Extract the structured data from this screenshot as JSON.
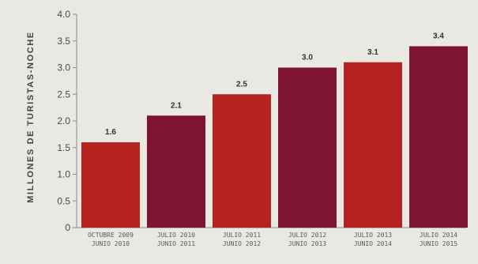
{
  "chart_data": {
    "type": "bar",
    "title": "",
    "xlabel": "",
    "ylabel": "MILLONES DE TURISTAS-NOCHE",
    "ylim": [
      0,
      4
    ],
    "yticks": [
      "0",
      "0.5",
      "1.0",
      "1.5",
      "2.0",
      "2.5",
      "3.0",
      "3.5",
      "4.0"
    ],
    "grid": false,
    "legend": "none",
    "categories": [
      [
        "OCTUBRE 2009",
        "JUNIO 2010"
      ],
      [
        "JULIO 2010",
        "JUNIO 2011"
      ],
      [
        "JULIO 2011",
        "JUNIO 2012"
      ],
      [
        "JULIO 2012",
        "JUNIO 2013"
      ],
      [
        "JULIO 2013",
        "JUNIO 2014"
      ],
      [
        "JULIO 2014",
        "JUNIO 2015"
      ]
    ],
    "values": [
      1.6,
      2.1,
      2.5,
      3.0,
      3.1,
      3.4
    ],
    "data_labels": [
      "1.6",
      "2.1",
      "2.5",
      "3.0",
      "3.1",
      "3.4"
    ],
    "bar_colors": [
      "#b42320",
      "#7e1431",
      "#b42320",
      "#7e1431",
      "#b42320",
      "#7e1431"
    ],
    "axis_color": "#8a8a8a",
    "background": "#e9e8e3"
  }
}
